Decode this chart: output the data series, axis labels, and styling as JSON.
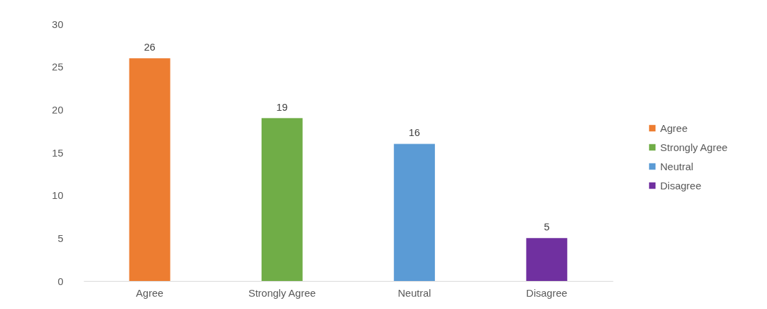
{
  "chart_data": {
    "type": "bar",
    "categories": [
      "Agree",
      "Strongly Agree",
      "Neutral",
      "Disagree"
    ],
    "series": [
      {
        "name": "Agree",
        "color": "#ed7d31",
        "values": [
          26,
          null,
          null,
          null
        ]
      },
      {
        "name": "Strongly Agree",
        "color": "#70ad47",
        "values": [
          null,
          19,
          null,
          null
        ]
      },
      {
        "name": "Neutral",
        "color": "#5b9bd5",
        "values": [
          null,
          null,
          16,
          null
        ]
      },
      {
        "name": "Disagree",
        "color": "#7030a0",
        "values": [
          null,
          null,
          null,
          5
        ]
      }
    ],
    "ylim": [
      0,
      30
    ],
    "yticks": [
      0,
      5,
      10,
      15,
      20,
      25,
      30
    ],
    "grid": false,
    "legend": "right",
    "data_labels": true
  }
}
